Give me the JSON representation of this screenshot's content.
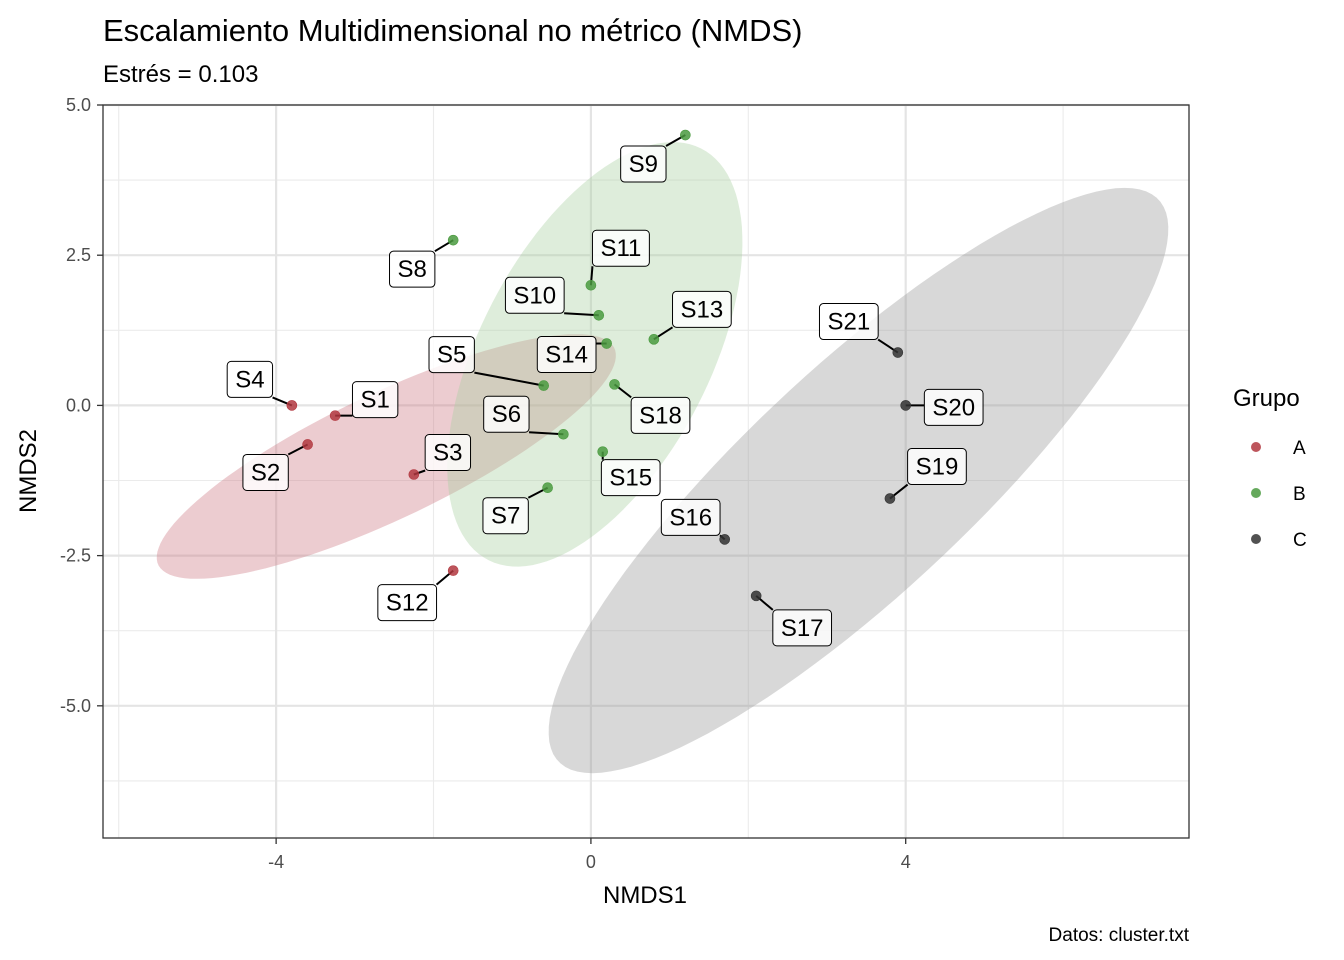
{
  "chart_data": {
    "type": "scatter",
    "title": "Escalamiento Multidimensional no métrico (NMDS)",
    "subtitle": "Estrés = 0.103",
    "xlabel": "NMDS1",
    "ylabel": "NMDS2",
    "caption": "Datos: cluster.txt",
    "xlim": [
      -6.2,
      7.6
    ],
    "ylim": [
      -7.2,
      5.0
    ],
    "x_ticks": [
      -4,
      0,
      4
    ],
    "x_tick_labels": [
      "-4",
      "0",
      "4"
    ],
    "y_ticks": [
      5.0,
      2.5,
      0.0,
      -2.5,
      -5.0
    ],
    "y_tick_labels": [
      "5.0",
      "2.5",
      "0.0",
      "-2.5",
      "-5.0"
    ],
    "grid": true,
    "legend": {
      "title": "Grupo",
      "position": "right",
      "entries": [
        {
          "name": "A",
          "color": "#b2373f"
        },
        {
          "name": "B",
          "color": "#4a9a3f"
        },
        {
          "name": "C",
          "color": "#333333"
        }
      ]
    },
    "ellipses": [
      {
        "group": "A",
        "color": "#cd7a83",
        "cx": -2.6,
        "cy": -0.85,
        "rx": 3.42,
        "ry": 0.98,
        "angle_deg": 33
      },
      {
        "group": "B",
        "color": "#a8cfa0",
        "cx": 0.05,
        "cy": 0.85,
        "rx": 3.7,
        "ry": 1.52,
        "angle_deg": 71
      },
      {
        "group": "C",
        "color": "#999999",
        "cx": 3.4,
        "cy": -1.25,
        "rx": 6.05,
        "ry": 1.62,
        "angle_deg": 52
      }
    ],
    "series": [
      {
        "name": "A",
        "points": [
          {
            "label": "S1",
            "x": -3.25,
            "y": -0.17
          },
          {
            "label": "S2",
            "x": -3.6,
            "y": -0.65
          },
          {
            "label": "S3",
            "x": -2.25,
            "y": -1.15
          },
          {
            "label": "S4",
            "x": -3.8,
            "y": 0.0
          },
          {
            "label": "S12",
            "x": -1.75,
            "y": -2.75
          }
        ]
      },
      {
        "name": "B",
        "points": [
          {
            "label": "S5",
            "x": -0.6,
            "y": 0.33
          },
          {
            "label": "S6",
            "x": -0.35,
            "y": -0.48
          },
          {
            "label": "S7",
            "x": -0.55,
            "y": -1.37
          },
          {
            "label": "S8",
            "x": -1.75,
            "y": 2.75
          },
          {
            "label": "S9",
            "x": 1.2,
            "y": 4.5
          },
          {
            "label": "S10",
            "x": 0.1,
            "y": 1.5
          },
          {
            "label": "S11",
            "x": 0.0,
            "y": 2.0
          },
          {
            "label": "S13",
            "x": 0.8,
            "y": 1.1
          },
          {
            "label": "S14",
            "x": 0.2,
            "y": 1.03
          },
          {
            "label": "S15",
            "x": 0.15,
            "y": -0.77
          },
          {
            "label": "S18",
            "x": 0.3,
            "y": 0.35
          }
        ]
      },
      {
        "name": "C",
        "points": [
          {
            "label": "S16",
            "x": 1.7,
            "y": -2.23
          },
          {
            "label": "S17",
            "x": 2.1,
            "y": -3.17
          },
          {
            "label": "S19",
            "x": 3.8,
            "y": -1.55
          },
          {
            "label": "S20",
            "x": 4.0,
            "y": 0.0
          },
          {
            "label": "S21",
            "x": 3.9,
            "y": 0.88
          }
        ]
      }
    ]
  }
}
